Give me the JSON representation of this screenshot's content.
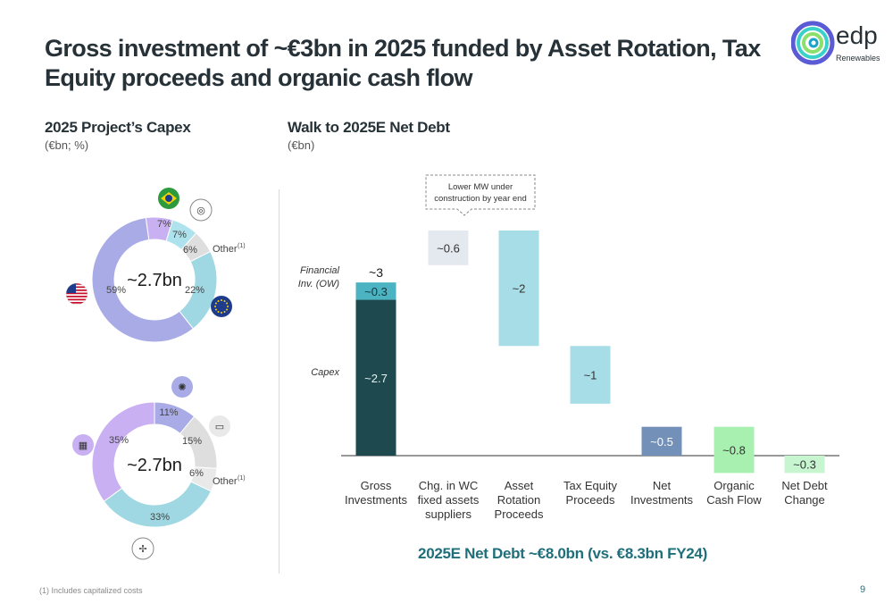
{
  "header": {
    "title": "Gross investment of ~€3bn in 2025 funded by Asset Rotation, Tax Equity proceeds and organic cash flow",
    "logo_word": "edp",
    "logo_sub": "Renewables"
  },
  "left": {
    "title": "2025 Project’s Capex",
    "subtitle": "(€bn; %)"
  },
  "right": {
    "title": "Walk to 2025E Net Debt",
    "subtitle": "(€bn)"
  },
  "bottom_note": "2025E Net Debt ~€8.0bn (vs. €8.3bn FY24)",
  "footnote": "(1) Includes capitalized costs",
  "page_number": "9",
  "colors": {
    "dark_teal": "#1e4a4f",
    "teal": "#4bb3c2",
    "light_blue": "#a7dde6",
    "grey_blue": "#e4e8ef",
    "slate_blue": "#7390b8",
    "mint": "#a8f0b0",
    "donut_purple": "#a9abe6",
    "donut_lilac": "#c9b0f2",
    "donut_cyan": "#9fd8e2",
    "donut_grey": "#dedede"
  },
  "chart_data": [
    {
      "type": "pie",
      "title": "",
      "center_label": "~2.7bn",
      "slices": [
        {
          "label": "Brazil",
          "value": 7,
          "text": "7%",
          "color": "#c9b0f2",
          "icon": "brazil-flag-icon"
        },
        {
          "label": "Rest of world",
          "value": 7,
          "text": "7%",
          "color": "#aee3ee",
          "icon": "globe-icon"
        },
        {
          "label": "Other(1)",
          "value": 6,
          "text": "6%",
          "color": "#dedede"
        },
        {
          "label": "Europe",
          "value": 22,
          "text": "22%",
          "color": "#9fd8e2",
          "icon": "eu-flag-icon"
        },
        {
          "label": "US",
          "value": 59,
          "text": "59%",
          "color": "#a9abe6",
          "icon": "us-flag-icon"
        }
      ],
      "other_label": "Other",
      "other_sup": "(1)"
    },
    {
      "type": "pie",
      "title": "",
      "center_label": "~2.7bn",
      "slices": [
        {
          "label": "Hybrid",
          "value": 11,
          "text": "11%",
          "color": "#a9abe6",
          "icon": "hybrid-icon"
        },
        {
          "label": "Storage",
          "value": 15,
          "text": "15%",
          "color": "#dedede",
          "icon": "battery-icon"
        },
        {
          "label": "Other(1)",
          "value": 6,
          "text": "6%",
          "color": "#e9e9e9"
        },
        {
          "label": "Wind",
          "value": 33,
          "text": "33%",
          "color": "#9fd8e2",
          "icon": "wind-turbine-icon"
        },
        {
          "label": "Solar",
          "value": 35,
          "text": "35%",
          "color": "#c9b0f2",
          "icon": "solar-panel-icon"
        }
      ],
      "other_label": "Other",
      "other_sup": "(1)"
    },
    {
      "type": "bar",
      "title": "Walk to 2025E Net Debt",
      "unit": "€bn",
      "categories": [
        [
          "Gross",
          "Investments"
        ],
        [
          "Chg. in WC",
          "fixed assets",
          "suppliers"
        ],
        [
          "Asset",
          "Rotation",
          "Proceeds"
        ],
        [
          "Tax Equity",
          "Proceeds"
        ],
        [
          "Net",
          "Investments"
        ],
        [
          "Organic",
          "Cash Flow"
        ],
        [
          "Net Debt",
          "Change"
        ]
      ],
      "bars": [
        {
          "segments": [
            {
              "name": "Capex",
              "from": 0,
              "to": 2.7,
              "label": "~2.7",
              "color": "#1e4a4f",
              "text_color": "#e6f2f2"
            },
            {
              "name": "Financial Inv. (OW)",
              "from": 2.7,
              "to": 3.0,
              "label": "~0.3",
              "color": "#4bb3c2",
              "text_color": "#12343a"
            }
          ],
          "total_label": "~3"
        },
        {
          "segments": [
            {
              "from": 3.9,
              "to": 3.3,
              "label": "~0.6",
              "color": "#e4e8ef",
              "text_color": "#333333"
            }
          ]
        },
        {
          "segments": [
            {
              "from": 3.9,
              "to": 1.9,
              "label": "~2",
              "color": "#a7dde6",
              "text_color": "#333333"
            }
          ]
        },
        {
          "segments": [
            {
              "from": 1.9,
              "to": 0.9,
              "label": "~1",
              "color": "#a7dde6",
              "text_color": "#333333"
            }
          ]
        },
        {
          "segments": [
            {
              "from": 0,
              "to": 0.5,
              "label": "~0.5",
              "color": "#7390b8",
              "text_color": "#ffffff"
            }
          ]
        },
        {
          "segments": [
            {
              "from": 0.5,
              "to": -0.3,
              "label": "~0.8",
              "color": "#a8f0b0",
              "text_color": "#333333"
            }
          ]
        },
        {
          "segments": [
            {
              "from": 0,
              "to": -0.3,
              "label": "~0.3",
              "color": "#c7f5cf",
              "text_color": "#333333"
            }
          ]
        }
      ],
      "segment_labels": {
        "financial": [
          "Financial",
          "Inv. (OW)"
        ],
        "capex": "Capex"
      },
      "callout": [
        "Lower MW under",
        "construction by year end"
      ],
      "ylim": [
        -0.3,
        3.9
      ]
    }
  ]
}
